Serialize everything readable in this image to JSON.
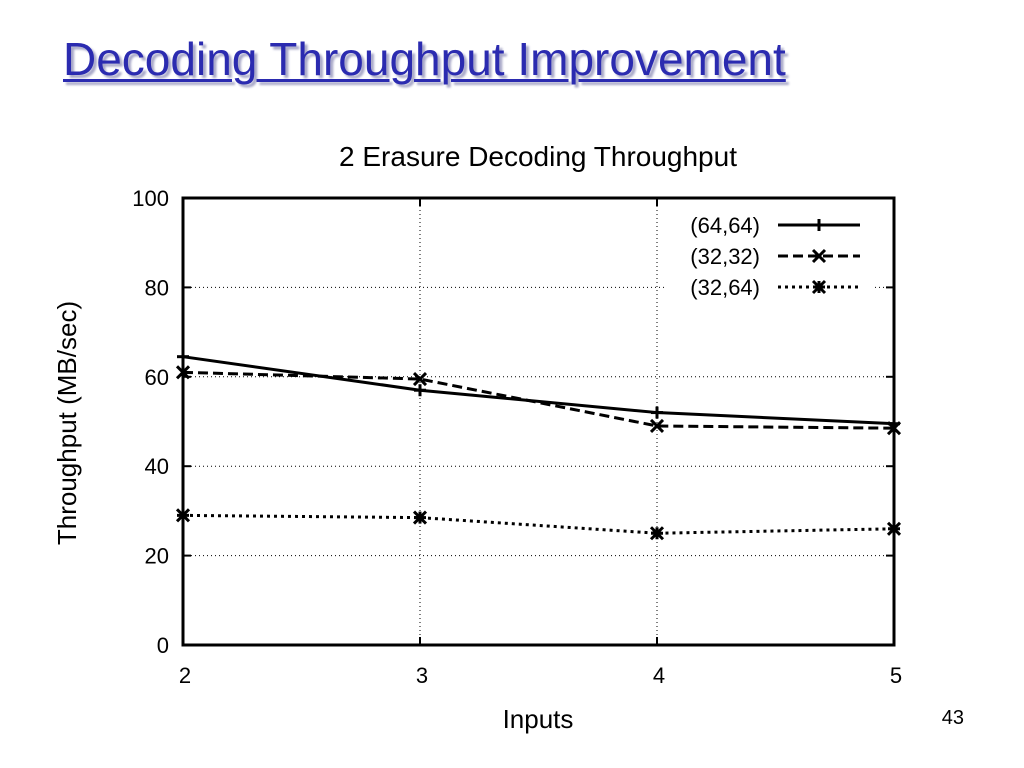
{
  "slide": {
    "title": "Decoding Throughput Improvement",
    "page_number": "43"
  },
  "chart_data": {
    "type": "line",
    "title": "2 Erasure Decoding Throughput",
    "xlabel": "Inputs",
    "ylabel": "Throughput (MB/sec)",
    "x": [
      2,
      3,
      4,
      5
    ],
    "xlim": [
      2,
      5
    ],
    "ylim": [
      0,
      100
    ],
    "yticks": [
      0,
      20,
      40,
      60,
      80,
      100
    ],
    "xticks": [
      2,
      3,
      4,
      5
    ],
    "grid": true,
    "legend_position": "top-right",
    "series": [
      {
        "name": "(64,64)",
        "values": [
          64.5,
          57.0,
          52.0,
          49.5
        ],
        "line_style": "solid",
        "marker": "plus"
      },
      {
        "name": "(32,32)",
        "values": [
          61.0,
          59.5,
          49.0,
          48.5
        ],
        "line_style": "dashed",
        "marker": "x"
      },
      {
        "name": "(32,64)",
        "values": [
          29.0,
          28.5,
          25.0,
          26.0
        ],
        "line_style": "dotted",
        "marker": "star"
      }
    ],
    "colors": {
      "lines": "#000000",
      "grid": "#000000",
      "title_text": "#2b2bb0"
    }
  }
}
